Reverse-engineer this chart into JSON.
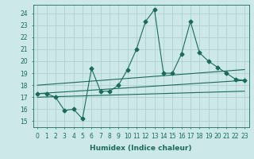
{
  "title": "",
  "xlabel": "Humidex (Indice chaleur)",
  "ylabel": "",
  "bg_color": "#cce8e8",
  "grid_color": "#aacccc",
  "line_color": "#1a6b5a",
  "xlim": [
    -0.5,
    23.5
  ],
  "ylim": [
    14.5,
    24.7
  ],
  "xticks": [
    0,
    1,
    2,
    3,
    4,
    5,
    6,
    7,
    8,
    9,
    10,
    11,
    12,
    13,
    14,
    15,
    16,
    17,
    18,
    19,
    20,
    21,
    22,
    23
  ],
  "yticks": [
    15,
    16,
    17,
    18,
    19,
    20,
    21,
    22,
    23,
    24
  ],
  "main_line_x": [
    0,
    1,
    2,
    3,
    4,
    5,
    6,
    7,
    8,
    9,
    10,
    11,
    12,
    13,
    14,
    15,
    16,
    17,
    18,
    19,
    20,
    21,
    22,
    23
  ],
  "main_line_y": [
    17.3,
    17.3,
    17.0,
    15.9,
    16.0,
    15.2,
    19.4,
    17.5,
    17.5,
    18.0,
    19.3,
    21.0,
    23.3,
    24.3,
    19.0,
    19.0,
    20.6,
    23.3,
    20.7,
    20.0,
    19.5,
    19.0,
    18.5,
    18.4
  ],
  "upper_line_x": [
    0,
    23
  ],
  "upper_line_y": [
    18.0,
    19.3
  ],
  "lower_line_x": [
    0,
    23
  ],
  "lower_line_y": [
    17.0,
    17.5
  ],
  "mid_line_x": [
    0,
    23
  ],
  "mid_line_y": [
    17.3,
    18.4
  ],
  "marker": "D",
  "marker_size": 2.5,
  "line_width": 0.8,
  "tick_fontsize": 5.5,
  "xlabel_fontsize": 6.5
}
